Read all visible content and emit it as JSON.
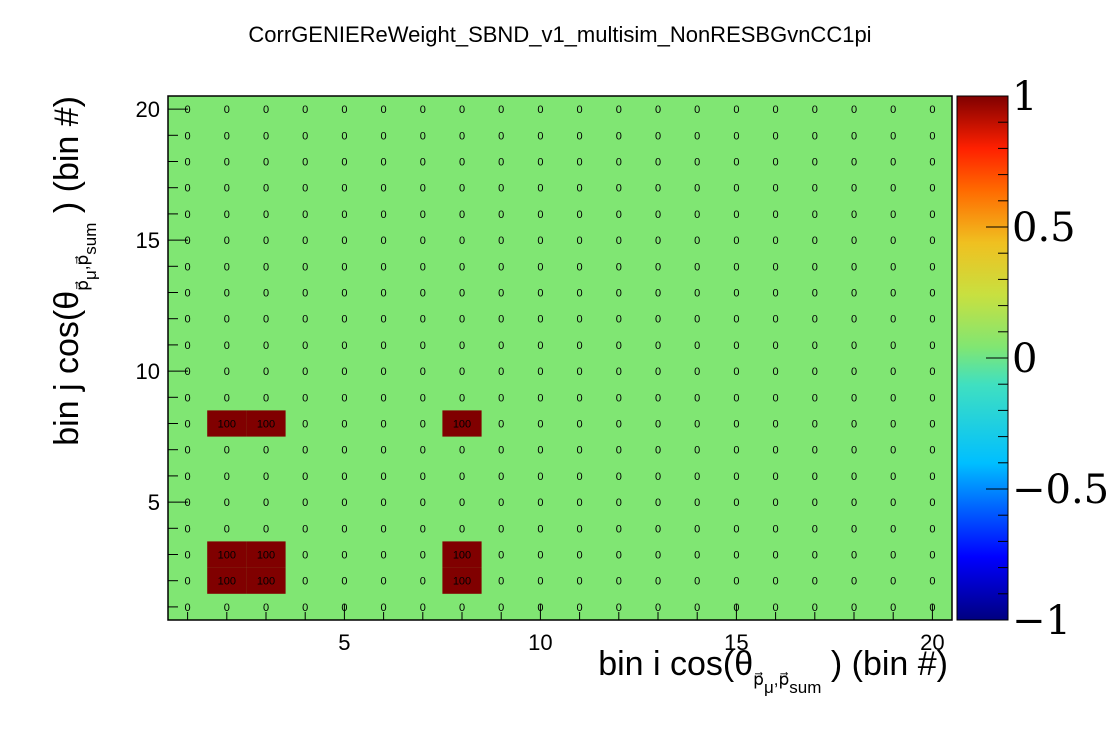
{
  "chart_data": {
    "type": "heatmap",
    "title": "CorrGENIEReWeight_SBND_v1_multisim_NonRESBGvnCC1pi",
    "xlabel": {
      "main": "bin i cos(θ",
      "sub1": "p",
      "sub1b": "μ",
      "sub2": "p",
      "sub2b": "sum",
      "tail": ") (bin #)"
    },
    "ylabel": {
      "main": "bin j cos(θ",
      "sub1": "p",
      "sub1b": "μ",
      "sub2": "p",
      "sub2b": "sum",
      "tail": ") (bin #)"
    },
    "xlim": [
      0.5,
      20.5
    ],
    "ylim": [
      0.5,
      20.5
    ],
    "x_ticks": [
      5,
      10,
      15,
      20
    ],
    "y_ticks": [
      5,
      10,
      15,
      20
    ],
    "bins_x": 20,
    "bins_y": 20,
    "z_range": [
      -1,
      1
    ],
    "z_ticks": [
      "1",
      "0.5",
      "0",
      "−0.5",
      "−1"
    ],
    "default_value": 0,
    "cells": [
      {
        "i": 2,
        "j": 2,
        "value": 100
      },
      {
        "i": 3,
        "j": 2,
        "value": 100
      },
      {
        "i": 8,
        "j": 2,
        "value": 100
      },
      {
        "i": 2,
        "j": 3,
        "value": 100
      },
      {
        "i": 3,
        "j": 3,
        "value": 100
      },
      {
        "i": 8,
        "j": 3,
        "value": 100
      },
      {
        "i": 2,
        "j": 8,
        "value": 100
      },
      {
        "i": 3,
        "j": 8,
        "value": 100
      },
      {
        "i": 8,
        "j": 8,
        "value": 100
      }
    ],
    "colors": {
      "zero": "#80e673",
      "high": "#800000"
    }
  }
}
